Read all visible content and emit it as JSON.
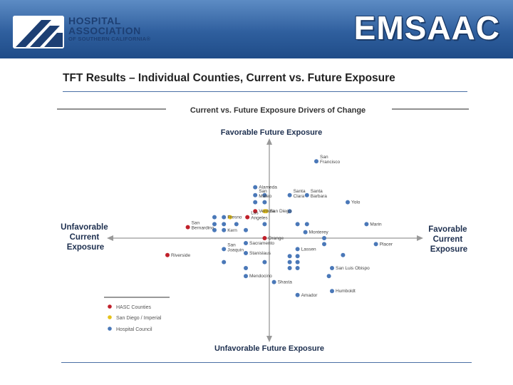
{
  "header": {
    "logo_line1": "HOSPITAL",
    "logo_line2": "ASSOCIATION",
    "logo_line3": "OF SOUTHERN CALIFORNIA®",
    "brand": "EMSAAC",
    "gradient_top": "#5d8cc4",
    "gradient_bottom": "#1f4c88"
  },
  "slide": {
    "title": "TFT Results – Individual Counties, Current vs. Future Exposure"
  },
  "chart_data": {
    "type": "scatter",
    "title": "Current vs. Future Exposure Drivers of Change",
    "axes": {
      "top": "Favorable Future Exposure",
      "bottom": "Unfavorable Future Exposure",
      "left": [
        "Unfavorable",
        "Current",
        "Exposure"
      ],
      "right": [
        "Favorable",
        "Current",
        "Exposure"
      ]
    },
    "xlim": [
      -100,
      100
    ],
    "ylim": [
      -100,
      100
    ],
    "legend": {
      "placement": "bottom-left",
      "items": [
        {
          "label": "HASC Counties",
          "color": "#c0202a"
        },
        {
          "label": "San Diego / Imperial",
          "color": "#e6c21a"
        },
        {
          "label": "Hospital Council",
          "color": "#4a78b8"
        }
      ]
    },
    "colors": {
      "hasc": "#c0202a",
      "sdi": "#e6c21a",
      "hc": "#4a78b8"
    },
    "points": [
      {
        "label": "San Francisco",
        "x": 30,
        "y": 77,
        "group": "hc"
      },
      {
        "label": "Alameda",
        "x": -9,
        "y": 51,
        "group": "hc"
      },
      {
        "label": "San Mateo",
        "x": -9,
        "y": 43,
        "group": "hc"
      },
      {
        "label": "Santa Clara",
        "x": 13,
        "y": 43,
        "group": "hc"
      },
      {
        "label": "Santa Barbara",
        "x": 24,
        "y": 43,
        "group": "hc"
      },
      {
        "label": "Yolo",
        "x": 50,
        "y": 36,
        "group": "hc"
      },
      {
        "label": "Ventura",
        "x": -9,
        "y": 27,
        "group": "hasc"
      },
      {
        "label": "",
        "x": -3,
        "y": 27,
        "group": "sdi"
      },
      {
        "label": "San Diego",
        "x": -2,
        "y": 27,
        "group": "sdi"
      },
      {
        "label": "Fresno",
        "x": -29,
        "y": 21,
        "group": "hc"
      },
      {
        "label": "",
        "x": -25,
        "y": 21,
        "group": "sdi"
      },
      {
        "label": "Los Angeles",
        "x": -14,
        "y": 21,
        "group": "hasc"
      },
      {
        "label": "Marin",
        "x": 62,
        "y": 14,
        "group": "hc"
      },
      {
        "label": "San Bernardino",
        "x": -52,
        "y": 11,
        "group": "hasc"
      },
      {
        "label": "Kern",
        "x": -29,
        "y": 8,
        "group": "hc"
      },
      {
        "label": "Monterey",
        "x": 23,
        "y": 6,
        "group": "hc"
      },
      {
        "label": "Orange",
        "x": -3,
        "y": 0,
        "group": "hasc"
      },
      {
        "label": "Sacramento",
        "x": -15,
        "y": -5,
        "group": "hc"
      },
      {
        "label": "Placer",
        "x": 68,
        "y": -6,
        "group": "hc"
      },
      {
        "label": "Lassen",
        "x": 18,
        "y": -11,
        "group": "hc"
      },
      {
        "label": "San Joaquin",
        "x": -29,
        "y": -11,
        "group": "hc"
      },
      {
        "label": "Stanislaus",
        "x": -15,
        "y": -15,
        "group": "hc"
      },
      {
        "label": "Riverside",
        "x": -65,
        "y": -17,
        "group": "hasc"
      },
      {
        "label": "San Luis Obispo",
        "x": 40,
        "y": -30,
        "group": "hc"
      },
      {
        "label": "Mendocino",
        "x": -15,
        "y": -38,
        "group": "hc"
      },
      {
        "label": "Shasta",
        "x": 3,
        "y": -44,
        "group": "hc"
      },
      {
        "label": "Humboldt",
        "x": 40,
        "y": -53,
        "group": "hc"
      },
      {
        "label": "Amador",
        "x": 18,
        "y": -57,
        "group": "hc"
      },
      {
        "label": "",
        "x": -35,
        "y": 21,
        "group": "hc"
      },
      {
        "label": "",
        "x": -35,
        "y": 14,
        "group": "hc"
      },
      {
        "label": "",
        "x": -29,
        "y": 14,
        "group": "hc"
      },
      {
        "label": "",
        "x": -21,
        "y": 14,
        "group": "hc"
      },
      {
        "label": "",
        "x": -35,
        "y": 8,
        "group": "hc"
      },
      {
        "label": "",
        "x": -15,
        "y": 8,
        "group": "hc"
      },
      {
        "label": "",
        "x": -9,
        "y": 36,
        "group": "hc"
      },
      {
        "label": "",
        "x": -3,
        "y": 36,
        "group": "hc"
      },
      {
        "label": "",
        "x": -3,
        "y": 43,
        "group": "hc"
      },
      {
        "label": "",
        "x": -3,
        "y": 14,
        "group": "hc"
      },
      {
        "label": "",
        "x": 13,
        "y": 27,
        "group": "hc"
      },
      {
        "label": "",
        "x": 18,
        "y": 14,
        "group": "hc"
      },
      {
        "label": "",
        "x": 24,
        "y": 14,
        "group": "hc"
      },
      {
        "label": "",
        "x": 35,
        "y": 0,
        "group": "hc"
      },
      {
        "label": "",
        "x": 35,
        "y": -6,
        "group": "hc"
      },
      {
        "label": "",
        "x": 13,
        "y": -18,
        "group": "hc"
      },
      {
        "label": "",
        "x": 18,
        "y": -18,
        "group": "hc"
      },
      {
        "label": "",
        "x": 13,
        "y": -24,
        "group": "hc"
      },
      {
        "label": "",
        "x": 18,
        "y": -24,
        "group": "hc"
      },
      {
        "label": "",
        "x": 13,
        "y": -30,
        "group": "hc"
      },
      {
        "label": "",
        "x": 18,
        "y": -30,
        "group": "hc"
      },
      {
        "label": "",
        "x": 47,
        "y": -17,
        "group": "hc"
      },
      {
        "label": "",
        "x": 38,
        "y": -38,
        "group": "hc"
      },
      {
        "label": "",
        "x": -29,
        "y": -24,
        "group": "hc"
      },
      {
        "label": "",
        "x": -3,
        "y": -24,
        "group": "hc"
      },
      {
        "label": "",
        "x": -15,
        "y": -30,
        "group": "hc"
      }
    ]
  }
}
